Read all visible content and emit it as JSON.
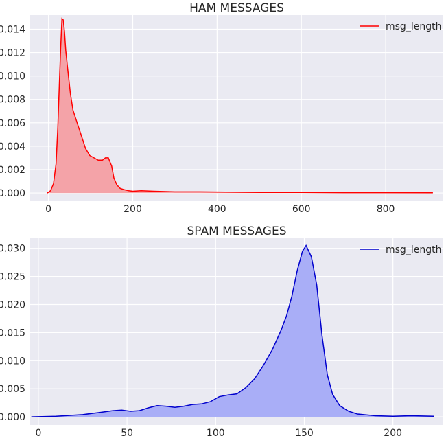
{
  "chart_data": [
    {
      "type": "area",
      "title": "HAM MESSAGES",
      "xlabel": "",
      "ylabel": "",
      "xlim": [
        -45,
        935
      ],
      "ylim": [
        -0.0007,
        0.0152
      ],
      "xticks": [
        0,
        200,
        400,
        600,
        800
      ],
      "xtick_labels": [
        "0",
        "200",
        "400",
        "600",
        "800"
      ],
      "yticks": [
        0.0,
        0.002,
        0.004,
        0.006,
        0.008,
        0.01,
        0.012,
        0.014
      ],
      "ytick_labels": [
        "0.000",
        "0.002",
        "0.004",
        "0.006",
        "0.008",
        "0.010",
        "0.012",
        "0.014"
      ],
      "grid": true,
      "legend": "top-right",
      "color": "#ff0000",
      "fill_color": "#f4a3a8",
      "series": [
        {
          "name": "msg_length",
          "x": [
            -3,
            5,
            12,
            18,
            22,
            26,
            29,
            32,
            35,
            38,
            41,
            45,
            52,
            58,
            68,
            78,
            88,
            98,
            108,
            118,
            128,
            135,
            142,
            150,
            155,
            162,
            170,
            178,
            190,
            200,
            220,
            250,
            300,
            360,
            420,
            500,
            600,
            700,
            800,
            912
          ],
          "values": [
            0.0,
            0.0002,
            0.0008,
            0.0025,
            0.0055,
            0.0095,
            0.0125,
            0.0149,
            0.0148,
            0.0138,
            0.0122,
            0.0108,
            0.0085,
            0.0071,
            0.006,
            0.0049,
            0.0038,
            0.0032,
            0.003,
            0.0028,
            0.0028,
            0.003,
            0.003,
            0.0023,
            0.0013,
            0.0007,
            0.0004,
            0.0003,
            0.0002,
            0.00015,
            0.0002,
            0.00015,
            0.0001,
            0.0001,
            8e-05,
            5e-05,
            5e-05,
            3e-05,
            3e-05,
            2e-05
          ]
        }
      ]
    },
    {
      "type": "area",
      "title": "SPAM MESSAGES",
      "xlabel": "",
      "ylabel": "",
      "xlim": [
        -5,
        228
      ],
      "ylim": [
        -0.00145,
        0.0318
      ],
      "xticks": [
        0,
        50,
        100,
        150,
        200
      ],
      "xtick_labels": [
        "0",
        "50",
        "100",
        "150",
        "200"
      ],
      "yticks": [
        0.0,
        0.005,
        0.01,
        0.015,
        0.02,
        0.025,
        0.03
      ],
      "ytick_labels": [
        "0.000",
        "0.005",
        "0.010",
        "0.015",
        "0.020",
        "0.025",
        "0.030"
      ],
      "grid": true,
      "legend": "top-right",
      "color": "#0000cc",
      "fill_color": "#a9aef7",
      "series": [
        {
          "name": "msg_length",
          "x": [
            -4,
            10,
            25,
            35,
            42,
            47,
            52,
            57,
            62,
            67,
            72,
            77,
            82,
            87,
            92,
            97,
            102,
            107,
            112,
            117,
            122,
            127,
            132,
            137,
            140,
            143,
            146,
            149,
            151,
            154,
            157,
            160,
            163,
            166,
            170,
            175,
            180,
            190,
            200,
            210,
            223
          ],
          "values": [
            0.0,
            0.0001,
            0.0004,
            0.0008,
            0.0011,
            0.0012,
            0.001,
            0.0011,
            0.0016,
            0.002,
            0.0019,
            0.0017,
            0.0019,
            0.0022,
            0.0023,
            0.0027,
            0.0036,
            0.0039,
            0.0041,
            0.0052,
            0.0068,
            0.0092,
            0.012,
            0.0155,
            0.018,
            0.0215,
            0.026,
            0.0295,
            0.0305,
            0.0285,
            0.0235,
            0.0145,
            0.0075,
            0.004,
            0.002,
            0.001,
            0.0005,
            0.0002,
            0.0001,
            0.0002,
            0.0001
          ]
        }
      ]
    }
  ]
}
